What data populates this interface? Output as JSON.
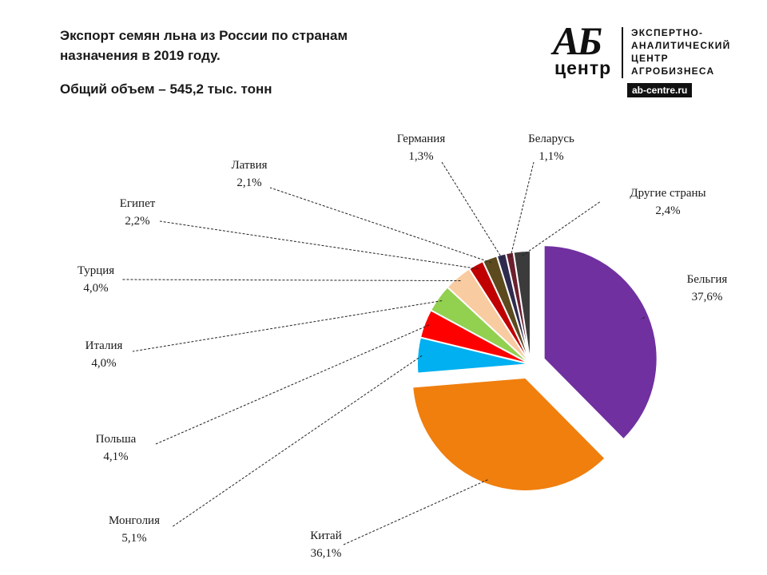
{
  "header": {
    "title_line1": "Экспорт семян льна из России по странам",
    "title_line2": "назначения  в 2019 году.",
    "subtitle": "Общий объем  – 545,2 тыс. тонн"
  },
  "logo": {
    "letters": "АБ",
    "word": "центр",
    "text": "ЭКСПЕРТНО-\nАНАЛИТИЧЕСКИЙ\nЦЕНТР\nАГРОБИЗНЕСА",
    "url": "ab-centre.ru"
  },
  "chart_data": {
    "type": "pie",
    "title": "Экспорт семян льна из России по странам назначения  в 2019 году.",
    "subtitle": "Общий объем  – 545,2 тыс. тонн",
    "start_angle_deg": 0,
    "direction": "clockwise",
    "slices": [
      {
        "name": "Бельгия",
        "value": 37.6,
        "label": "37,6%",
        "color": "#7030A0",
        "exploded": true
      },
      {
        "name": "Китай",
        "value": 36.1,
        "label": "36,1%",
        "color": "#F07F0E",
        "exploded": true
      },
      {
        "name": "Монголия",
        "value": 5.1,
        "label": "5,1%",
        "color": "#00B0F0",
        "exploded": false
      },
      {
        "name": "Польша",
        "value": 4.1,
        "label": "4,1%",
        "color": "#FF0000",
        "exploded": false
      },
      {
        "name": "Италия",
        "value": 4.0,
        "label": "4,0%",
        "color": "#92D050",
        "exploded": false
      },
      {
        "name": "Турция",
        "value": 4.0,
        "label": "4,0%",
        "color": "#F8CBA0",
        "exploded": false
      },
      {
        "name": "Египет",
        "value": 2.2,
        "label": "2,2%",
        "color": "#C00000",
        "exploded": false
      },
      {
        "name": "Латвия",
        "value": 2.1,
        "label": "2,1%",
        "color": "#5C4A1E",
        "exploded": false
      },
      {
        "name": "Германия",
        "value": 1.3,
        "label": "1,3%",
        "color": "#2E2B4F",
        "exploded": false
      },
      {
        "name": "Беларусь",
        "value": 1.1,
        "label": "1,1%",
        "color": "#6B1F2E",
        "exploded": false
      },
      {
        "name": "Другие страны",
        "value": 2.4,
        "label": "2,4%",
        "color": "#3B3B3B",
        "exploded": false
      }
    ]
  }
}
